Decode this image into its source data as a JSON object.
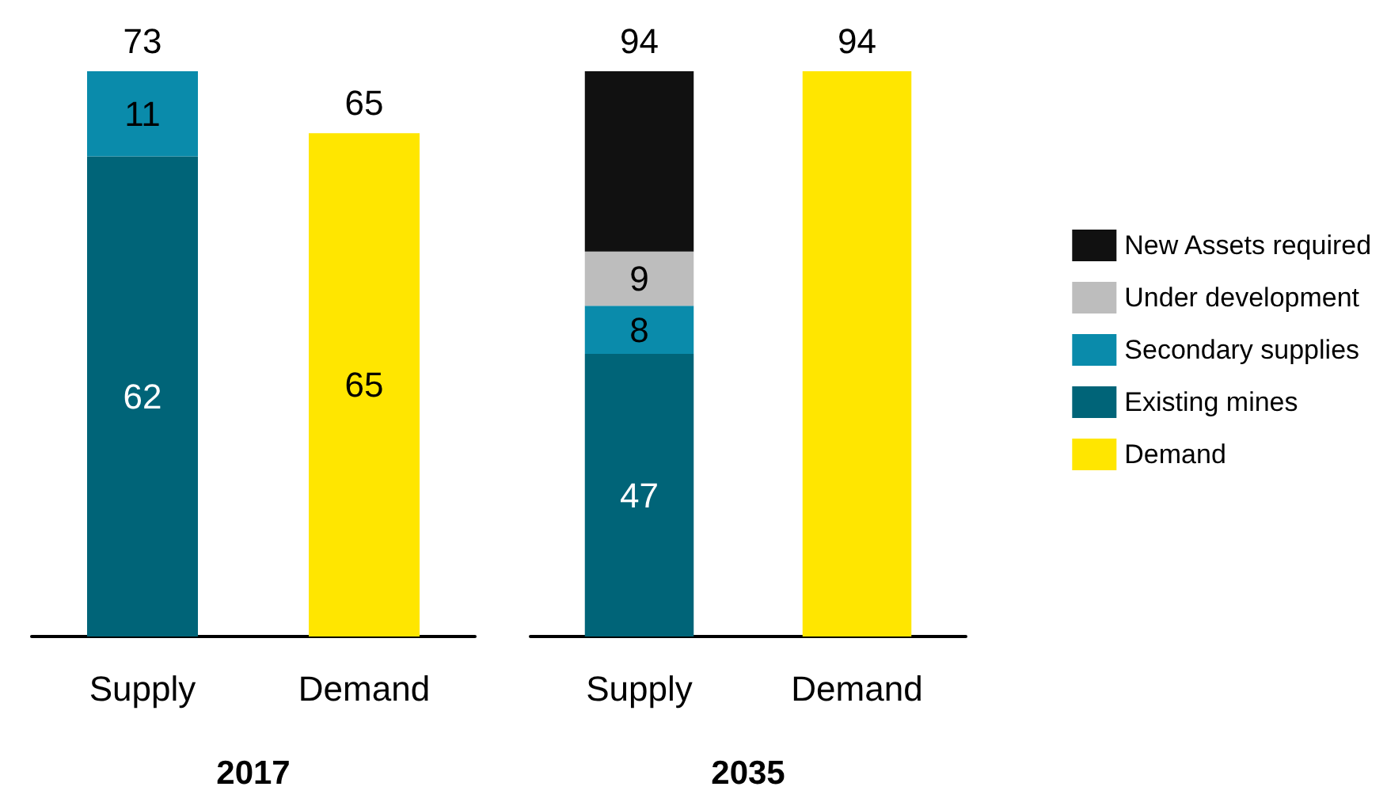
{
  "chart_data": [
    {
      "type": "bar",
      "stacked": true,
      "xlabel": "2017",
      "categories": [
        "Supply",
        "Demand"
      ],
      "data_labels": true,
      "totals": [
        "73",
        "65"
      ],
      "series": [
        {
          "color": "#ffe600",
          "values": [
            null,
            65
          ]
        },
        {
          "color": "#006478",
          "values": [
            62,
            null
          ]
        },
        {
          "color": "#0a8bab",
          "values": [
            11,
            null
          ]
        }
      ]
    },
    {
      "type": "bar",
      "stacked": true,
      "xlabel": "2035",
      "categories": [
        "Supply",
        "Demand"
      ],
      "totals": [
        "94",
        "94"
      ],
      "legend": "right",
      "series": [
        {
          "name": "Demand",
          "color": "#ffe600",
          "values": [
            null,
            94
          ],
          "value_labels": [
            null,
            null
          ]
        },
        {
          "name": "Existing mines",
          "color": "#006478",
          "values": [
            47,
            null
          ],
          "value_labels": [
            "47",
            null
          ]
        },
        {
          "name": "Secondary supplies",
          "color": "#0a8bab",
          "values": [
            8,
            null
          ],
          "value_labels": [
            "8",
            null
          ]
        },
        {
          "name": "Under development",
          "color": "#bdbdbd",
          "values": [
            9,
            null
          ],
          "value_labels": [
            "9",
            null
          ]
        },
        {
          "name": "New Assets required",
          "color": "#111111",
          "values": [
            30,
            null
          ],
          "value_labels": [
            null,
            null
          ]
        }
      ]
    }
  ]
}
